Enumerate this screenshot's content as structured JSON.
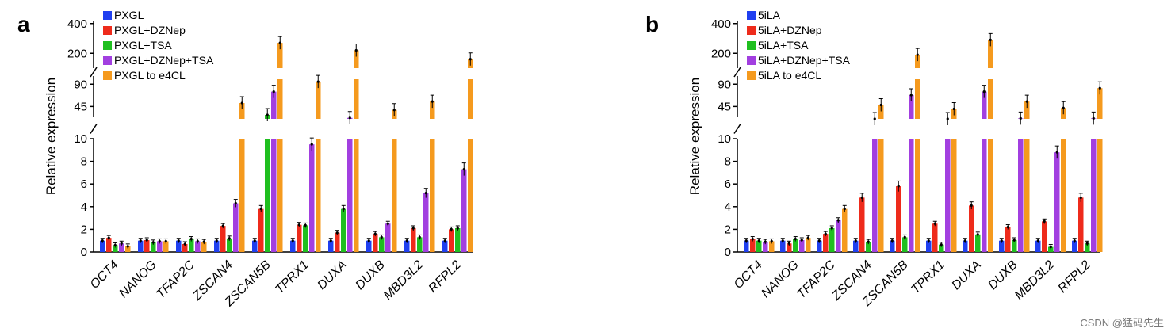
{
  "watermark": "CSDN @猛码先生",
  "chart_data": [
    {
      "type": "bar",
      "panel": "a",
      "ylabel": "Relative expression",
      "broken_axis": true,
      "y_segments": [
        {
          "range": [
            0,
            10
          ],
          "ticks": [
            0,
            2,
            4,
            6,
            8,
            10
          ]
        },
        {
          "range": [
            20,
            100
          ],
          "ticks": [
            45,
            90
          ]
        },
        {
          "range": [
            100,
            420
          ],
          "ticks": [
            200,
            400
          ]
        }
      ],
      "categories": [
        "OCT4",
        "NANOG",
        "TFAP2C",
        "ZSCAN4",
        "ZSCAN5B",
        "TPRX1",
        "DUXA",
        "DUXB",
        "MBD3L2",
        "RFPL2"
      ],
      "series": [
        {
          "name": "PXGL",
          "color": "#1f3ff0",
          "values": [
            1.0,
            1.0,
            1.0,
            1.0,
            1.0,
            1.0,
            1.0,
            1.0,
            1.0,
            1.0
          ]
        },
        {
          "name": "PXGL+DZNep",
          "color": "#ee2b1b",
          "values": [
            1.25,
            1.05,
            0.7,
            2.3,
            3.8,
            2.4,
            1.7,
            1.6,
            2.1,
            2.0
          ]
        },
        {
          "name": "PXGL+TSA",
          "color": "#1fbf1f",
          "values": [
            0.6,
            0.85,
            1.15,
            1.2,
            28,
            2.35,
            3.8,
            1.3,
            1.3,
            2.1
          ]
        },
        {
          "name": "PXGL+DZNep+TSA",
          "color": "#a23fe0",
          "values": [
            0.75,
            0.95,
            0.95,
            4.3,
            75,
            9.5,
            22,
            2.5,
            5.2,
            7.3
          ]
        },
        {
          "name": "PXGL to e4CL",
          "color": "#f59a1e",
          "values": [
            0.5,
            0.95,
            0.9,
            52,
            270,
            95,
            220,
            38,
            55,
            160
          ]
        }
      ]
    },
    {
      "type": "bar",
      "panel": "b",
      "ylabel": "Relative expression",
      "broken_axis": true,
      "y_segments": [
        {
          "range": [
            0,
            10
          ],
          "ticks": [
            0,
            2,
            4,
            6,
            8,
            10
          ]
        },
        {
          "range": [
            20,
            100
          ],
          "ticks": [
            45,
            90
          ]
        },
        {
          "range": [
            100,
            420
          ],
          "ticks": [
            200,
            400
          ]
        }
      ],
      "categories": [
        "OCT4",
        "NANOG",
        "TFAP2C",
        "ZSCAN4",
        "ZSCAN5B",
        "TPRX1",
        "DUXA",
        "DUXB",
        "MBD3L2",
        "RFPL2"
      ],
      "series": [
        {
          "name": "5iLA",
          "color": "#1f3ff0",
          "values": [
            1.0,
            1.0,
            1.0,
            1.0,
            1.0,
            1.0,
            1.0,
            1.0,
            1.0,
            1.0
          ]
        },
        {
          "name": "5iLA+DZNep",
          "color": "#ee2b1b",
          "values": [
            1.15,
            0.75,
            1.6,
            4.8,
            5.8,
            2.5,
            4.1,
            2.2,
            2.7,
            4.8
          ]
        },
        {
          "name": "5iLA+TSA",
          "color": "#1fbf1f",
          "values": [
            1.0,
            1.15,
            2.1,
            0.9,
            1.3,
            0.65,
            1.55,
            1.05,
            0.45,
            0.75
          ]
        },
        {
          "name": "5iLA+DZNep+TSA",
          "color": "#a23fe0",
          "values": [
            0.9,
            1.05,
            2.8,
            20,
            68,
            20,
            75,
            21,
            8.8,
            21
          ]
        },
        {
          "name": "5iLA to e4CL",
          "color": "#f59a1e",
          "values": [
            0.95,
            1.25,
            3.8,
            48,
            190,
            40,
            290,
            55,
            42,
            82
          ]
        }
      ]
    }
  ]
}
